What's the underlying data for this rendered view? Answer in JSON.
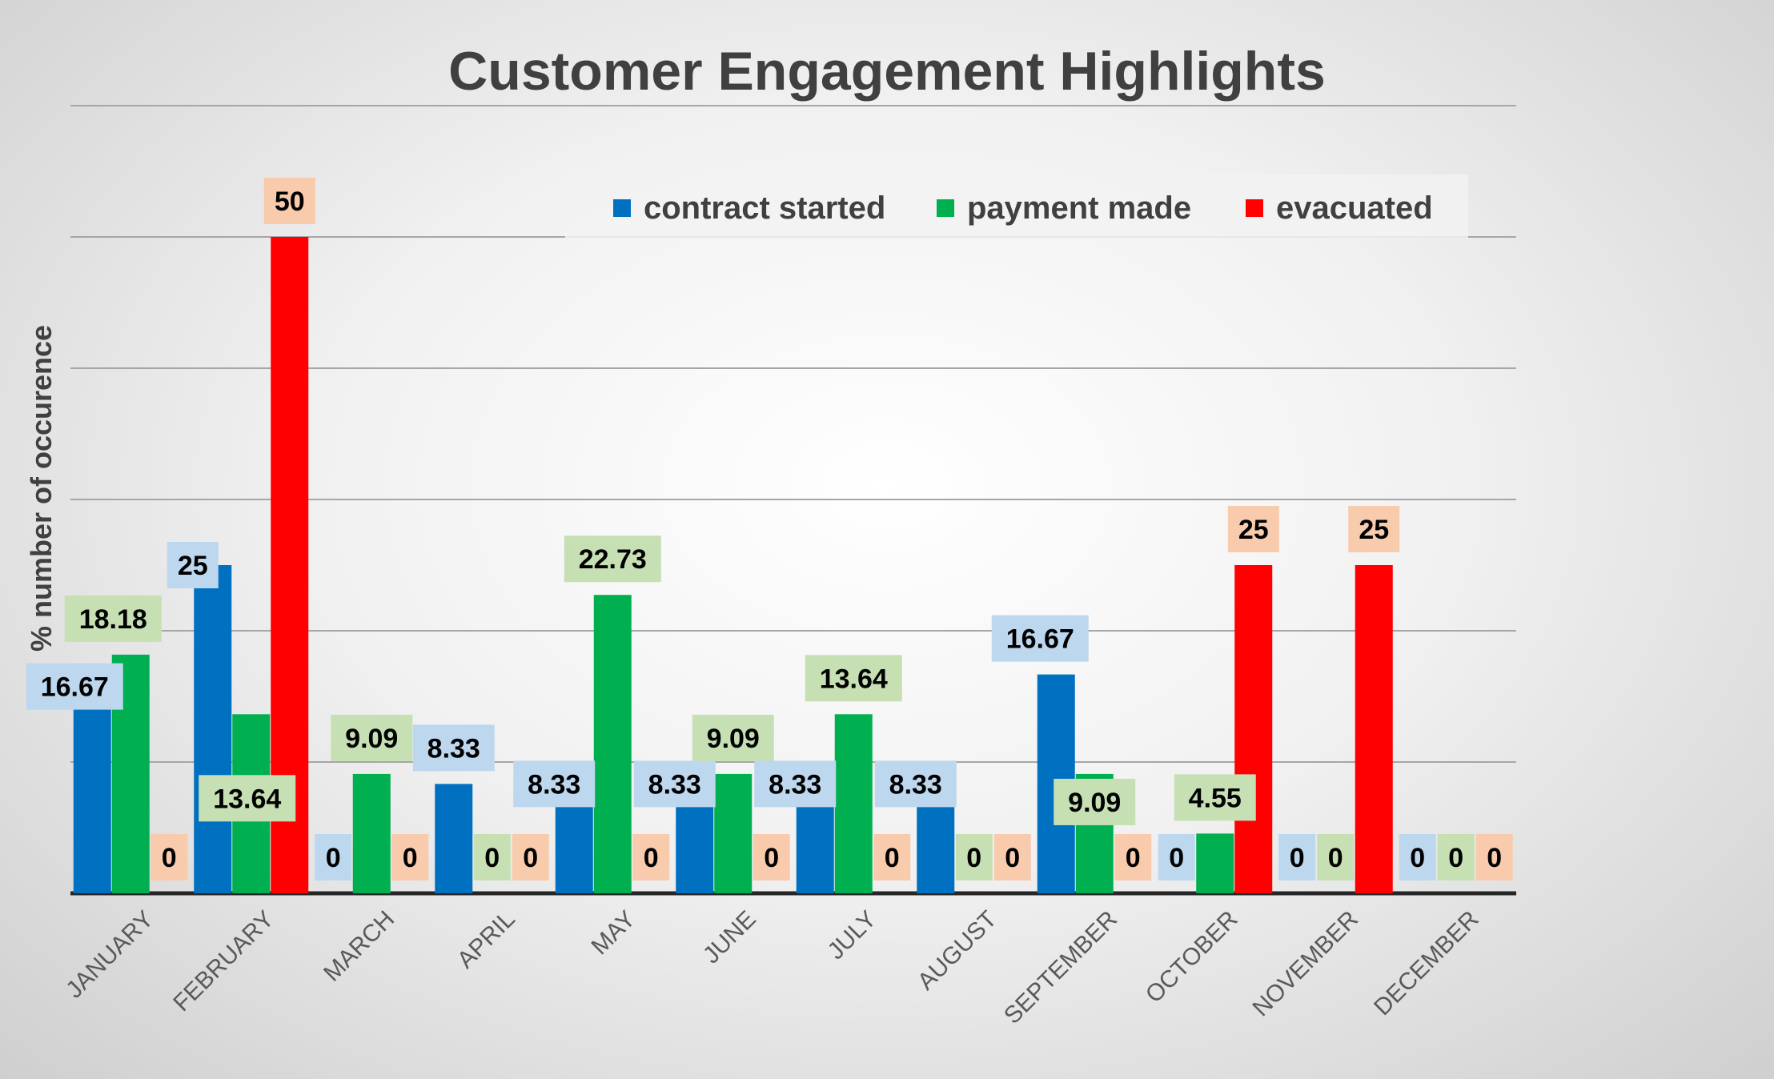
{
  "chart_data": {
    "type": "bar",
    "title": "Customer Engagement Highlights",
    "xlabel": "",
    "ylabel": "% number of occurence",
    "categories": [
      "JANUARY",
      "FEBRUARY",
      "MARCH",
      "APRIL",
      "MAY",
      "JUNE",
      "JULY",
      "AUGUST",
      "SEPTEMBER",
      "OCTOBER",
      "NOVEMBER",
      "DECEMBER"
    ],
    "series": [
      {
        "name": "contract started",
        "color": "#0070C0",
        "label_bg": "#BDD7EE",
        "values": [
          16.67,
          25,
          0,
          8.33,
          8.33,
          8.33,
          8.33,
          8.33,
          16.67,
          0,
          0,
          0
        ]
      },
      {
        "name": "payment made",
        "color": "#00B050",
        "label_bg": "#C6E0B4",
        "values": [
          18.18,
          13.64,
          9.09,
          0,
          22.73,
          9.09,
          13.64,
          0,
          9.09,
          4.55,
          0,
          0
        ]
      },
      {
        "name": "evacuated",
        "color": "#FF0000",
        "label_bg": "#F8CBAD",
        "values": [
          0,
          50,
          0,
          0,
          0,
          0,
          0,
          0,
          0,
          25,
          25,
          0
        ]
      }
    ],
    "ylim": [
      0,
      60
    ],
    "grid": true,
    "legend_position": "top-right",
    "data_labels": true
  }
}
